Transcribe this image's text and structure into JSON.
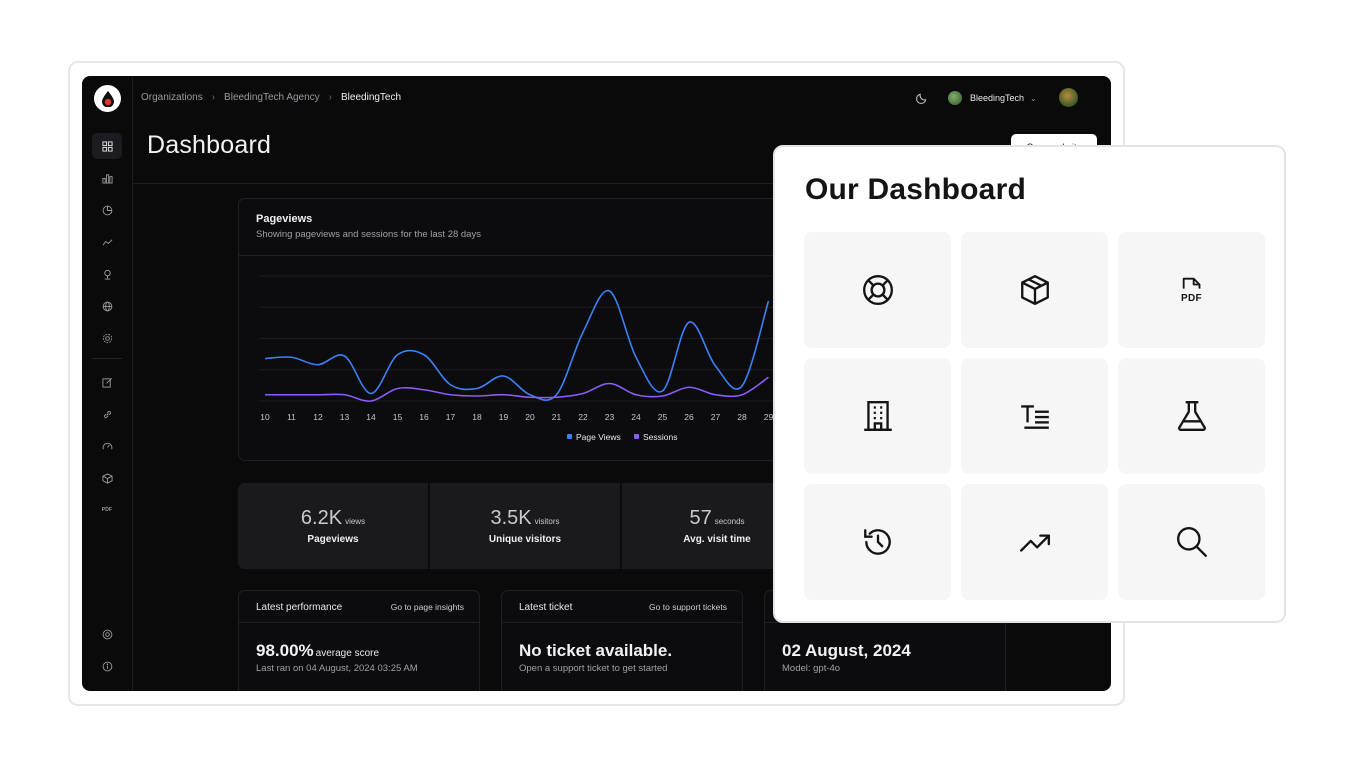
{
  "breadcrumb": [
    "Organizations",
    "BleedingTech Agency",
    "BleedingTech"
  ],
  "topbar": {
    "org_name": "BleedingTech"
  },
  "page": {
    "title": "Dashboard",
    "open_website_label": "Open website"
  },
  "sidebar": {
    "top_icons": [
      "grid-icon",
      "bar-chart-icon",
      "pie-chart-icon",
      "trend-line-icon",
      "location-pin-icon",
      "globe-icon",
      "gear-icon"
    ],
    "mid_icons": [
      "edit-icon",
      "link-icon",
      "gauge-icon",
      "box-icon",
      "pdf-icon"
    ],
    "mid_pdf_label": "PDF",
    "bottom_icons": [
      "support-icon",
      "info-icon"
    ]
  },
  "chart": {
    "title": "Pageviews",
    "subtitle": "Showing pageviews and sessions for the last 28 days"
  },
  "chart_data": {
    "type": "line",
    "x": [
      10,
      11,
      12,
      13,
      14,
      15,
      16,
      17,
      18,
      19,
      20,
      21,
      22,
      23,
      24,
      25,
      26,
      27,
      28,
      29
    ],
    "series": [
      {
        "name": "Page Views",
        "color": "#3b82f6",
        "values": [
          34,
          35,
          29,
          36,
          6,
          37,
          37,
          13,
          10,
          20,
          5,
          5,
          55,
          88,
          35,
          8,
          63,
          28,
          12,
          80
        ]
      },
      {
        "name": "Sessions",
        "color": "#8b5cf6",
        "values": [
          5,
          5,
          5,
          5,
          0,
          10,
          9,
          5,
          4,
          5,
          3,
          3,
          6,
          14,
          5,
          4,
          11,
          5,
          5,
          19
        ]
      }
    ],
    "ylim": [
      0,
      100
    ],
    "grid": true,
    "legend": "bottom-center"
  },
  "stats": [
    {
      "value": "6.2K",
      "unit": "views",
      "label": "Pageviews"
    },
    {
      "value": "3.5K",
      "unit": "visitors",
      "label": "Unique visitors"
    },
    {
      "value": "57",
      "unit": "seconds",
      "label": "Avg. visit time"
    }
  ],
  "cards": {
    "performance": {
      "heading": "Latest performance",
      "link": "Go to page insights",
      "value": "98.00%",
      "suffix": "average score",
      "sub": "Last ran on 04 August, 2024 03:25 AM"
    },
    "ticket": {
      "heading": "Latest ticket",
      "link": "Go to support tickets",
      "value": "No ticket available.",
      "sub": "Open a support ticket to get started"
    },
    "model": {
      "value": "02 August, 2024",
      "sub": "Model: gpt-4o"
    }
  },
  "overlay": {
    "title": "Our Dashboard",
    "tiles": [
      "life-buoy-icon",
      "package-icon",
      "pdf-file-icon",
      "building-icon",
      "text-lines-icon",
      "flask-icon",
      "history-icon",
      "trending-up-icon",
      "search-icon"
    ],
    "pdf_label": "PDF"
  }
}
